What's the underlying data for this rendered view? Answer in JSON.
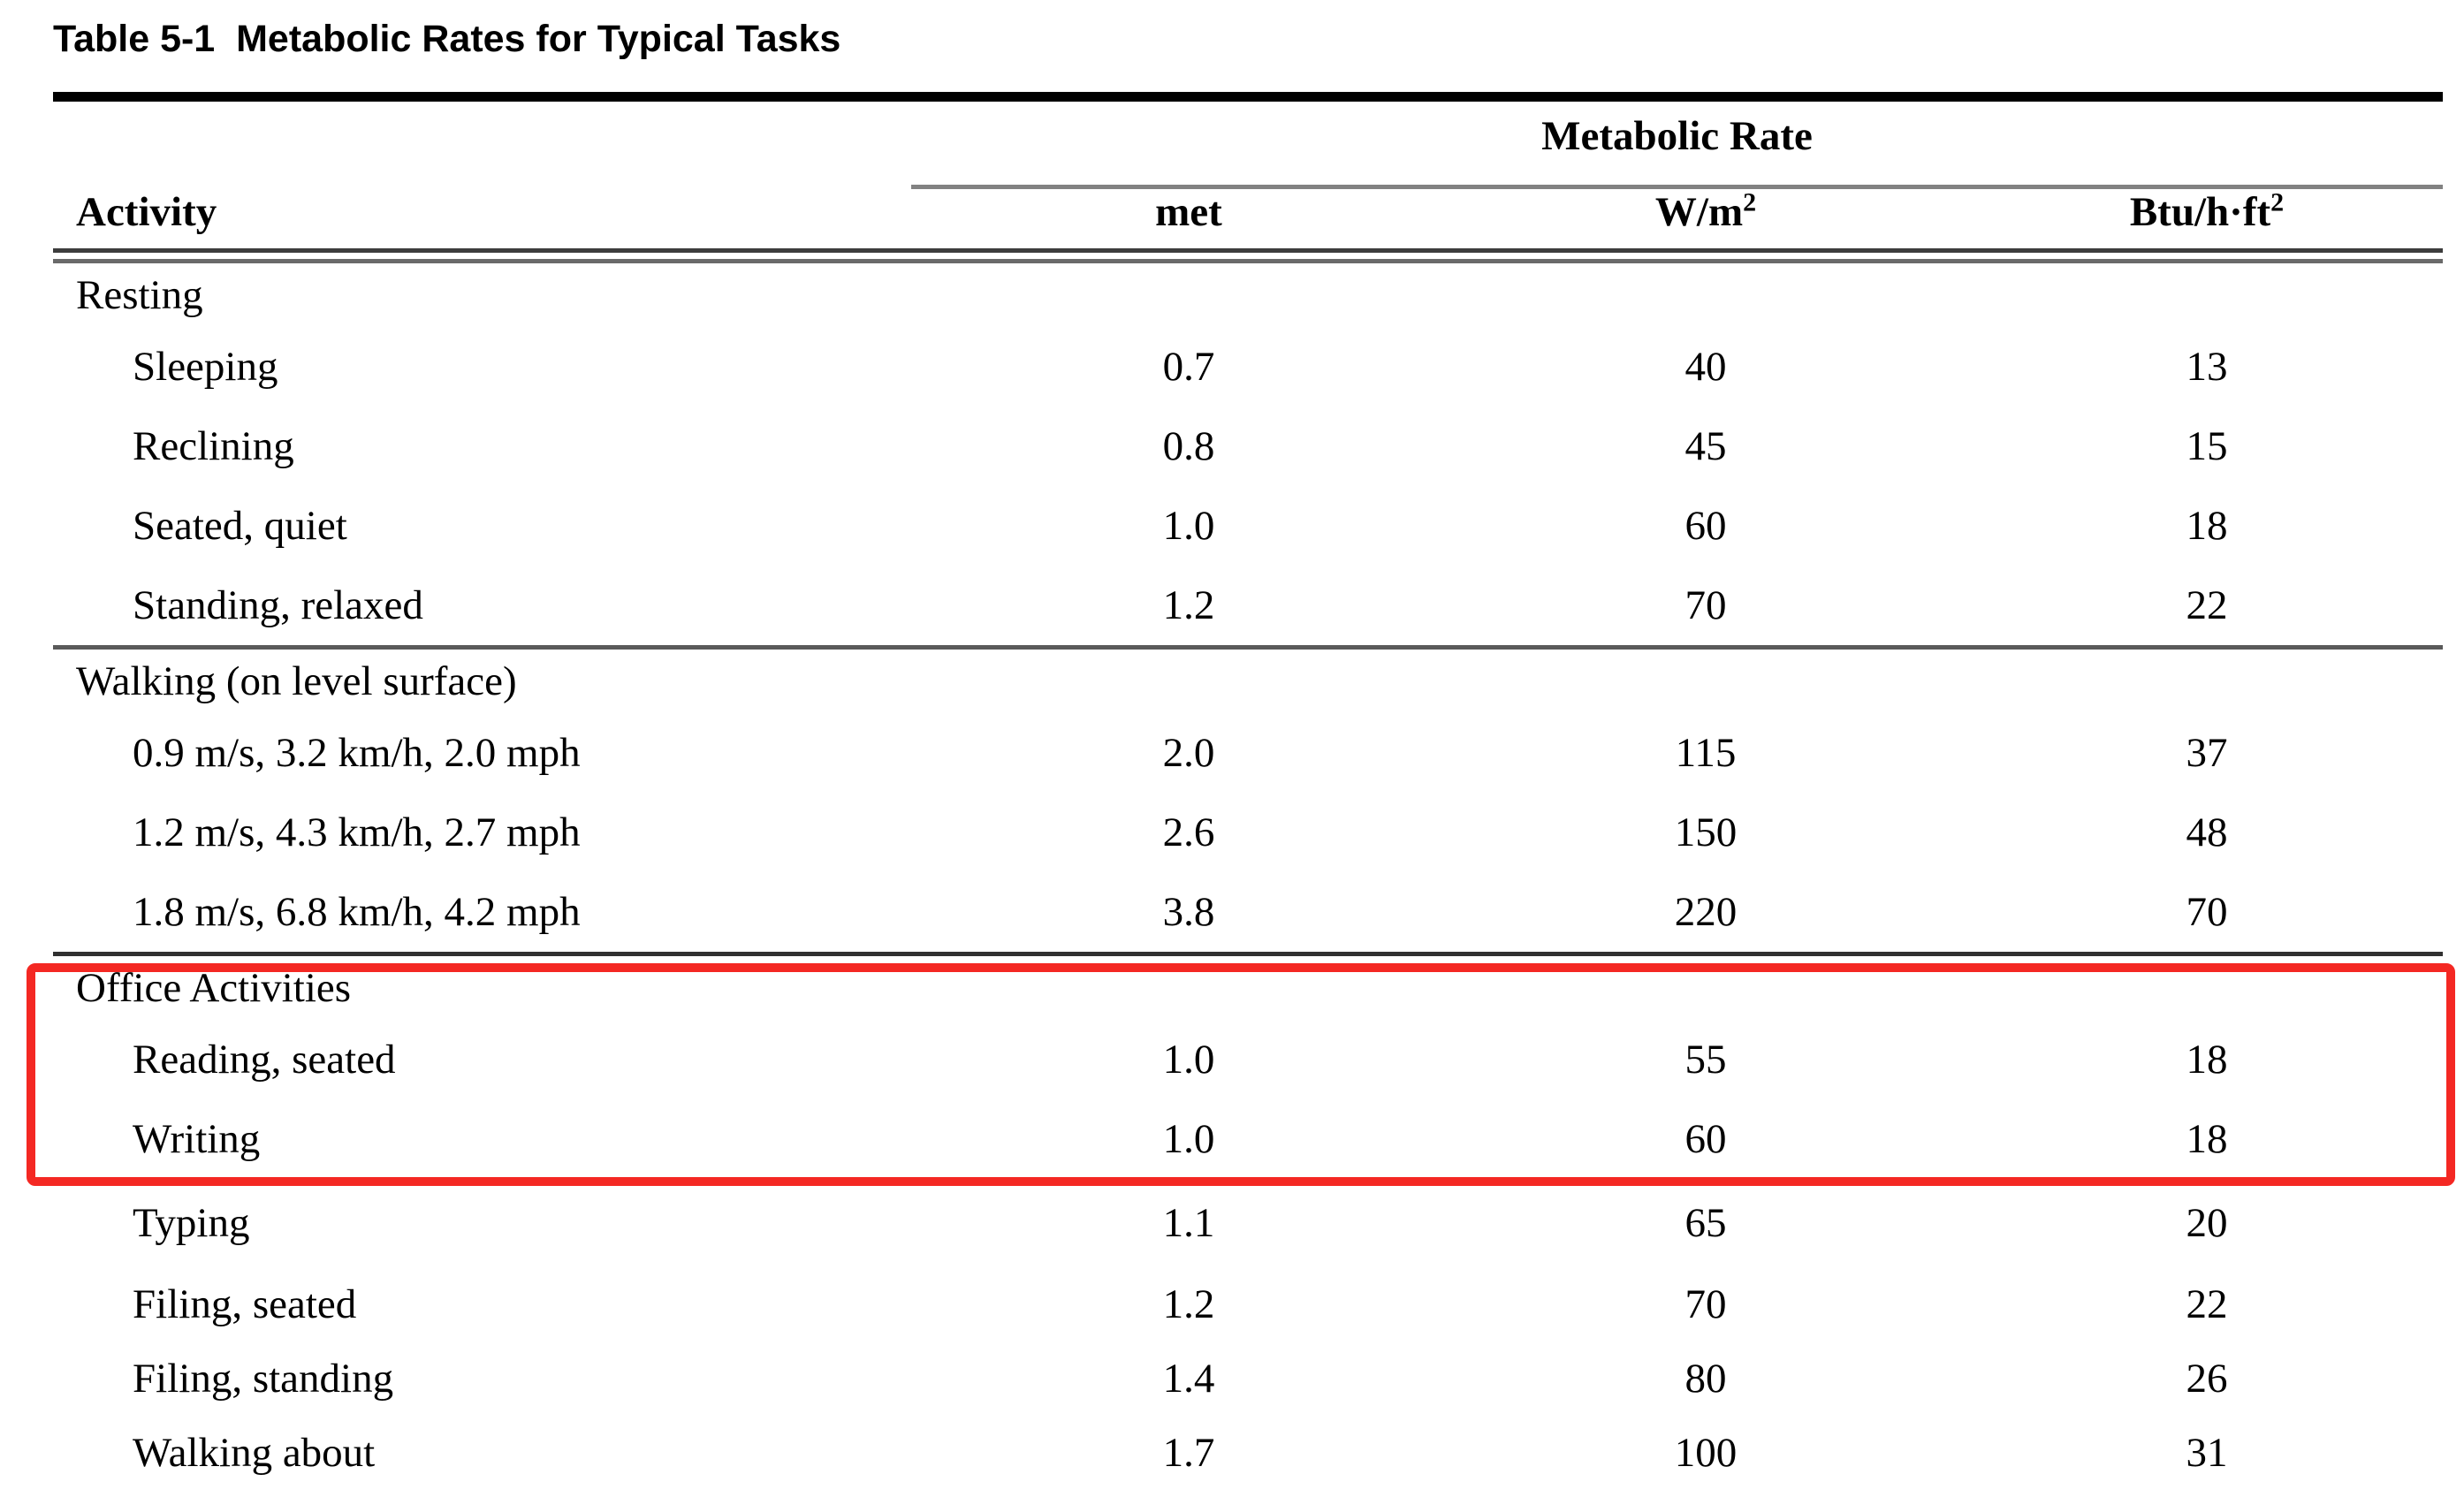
{
  "page": {
    "title": "Table 5-1  Metabolic Rates for Typical Tasks"
  },
  "table": {
    "spanning_header": "Metabolic Rate",
    "activity_header": "Activity",
    "unit_headers": {
      "met": "met",
      "wm2_base": "W/m",
      "wm2_sup": "2",
      "btu_base": "Btu/h·ft",
      "btu_sup": "2"
    },
    "sections": [
      {
        "label": "Resting",
        "rows": [
          {
            "activity": "Sleeping",
            "met": "0.7",
            "wm2": "40",
            "btu": "13"
          },
          {
            "activity": "Reclining",
            "met": "0.8",
            "wm2": "45",
            "btu": "15"
          },
          {
            "activity": "Seated, quiet",
            "met": "1.0",
            "wm2": "60",
            "btu": "18"
          },
          {
            "activity": "Standing, relaxed",
            "met": "1.2",
            "wm2": "70",
            "btu": "22"
          }
        ]
      },
      {
        "label": "Walking (on level surface)",
        "rows": [
          {
            "activity": "0.9 m/s, 3.2 km/h, 2.0 mph",
            "met": "2.0",
            "wm2": "115",
            "btu": "37"
          },
          {
            "activity": "1.2 m/s, 4.3 km/h, 2.7 mph",
            "met": "2.6",
            "wm2": "150",
            "btu": "48"
          },
          {
            "activity": "1.8 m/s, 6.8 km/h, 4.2 mph",
            "met": "3.8",
            "wm2": "220",
            "btu": "70"
          }
        ]
      },
      {
        "label": "Office Activities",
        "rows": [
          {
            "activity": "Reading, seated",
            "met": "1.0",
            "wm2": "55",
            "btu": "18"
          },
          {
            "activity": "Writing",
            "met": "1.0",
            "wm2": "60",
            "btu": "18"
          },
          {
            "activity": "Typing",
            "met": "1.1",
            "wm2": "65",
            "btu": "20"
          },
          {
            "activity": "Filing, seated",
            "met": "1.2",
            "wm2": "70",
            "btu": "22"
          },
          {
            "activity": "Filing, standing",
            "met": "1.4",
            "wm2": "80",
            "btu": "26"
          },
          {
            "activity": "Walking about",
            "met": "1.7",
            "wm2": "100",
            "btu": "31"
          }
        ]
      }
    ],
    "highlight": {
      "color": "#f42823",
      "highlighted_rows": [
        "Office Activities",
        "Reading, seated",
        "Writing"
      ]
    }
  }
}
